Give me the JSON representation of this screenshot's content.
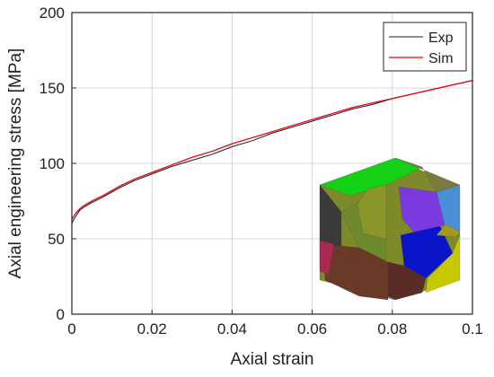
{
  "colors": {
    "exp": "#1a1a1a",
    "sim": "#e8000b",
    "grid": "#d9d9d9",
    "axis": "#262626"
  },
  "chart_data": {
    "type": "line",
    "title": "",
    "xlabel": "Axial strain",
    "ylabel": "Axial engineering stress [MPa]",
    "xlim": [
      0,
      0.1
    ],
    "ylim": [
      0,
      200
    ],
    "xticks": [
      0,
      0.02,
      0.04,
      0.06,
      0.08,
      0.1
    ],
    "xtick_labels": [
      "0",
      "0.02",
      "0.04",
      "0.06",
      "0.08",
      "0.1"
    ],
    "yticks": [
      0,
      50,
      100,
      150,
      200
    ],
    "ytick_labels": [
      "0",
      "50",
      "100",
      "150",
      "200"
    ],
    "grid": true,
    "legend_position": "top-right",
    "series": [
      {
        "name": "Exp",
        "color": "#1a1a1a",
        "x": [
          0,
          0.0005,
          0.001,
          0.002,
          0.003,
          0.005,
          0.008,
          0.012,
          0.016,
          0.02,
          0.025,
          0.03,
          0.035,
          0.04,
          0.045,
          0.05,
          0.055,
          0.06,
          0.065,
          0.07,
          0.075,
          0.08,
          0.085,
          0.09,
          0.095,
          0.1
        ],
        "y": [
          60,
          63,
          65,
          69,
          71,
          74,
          78,
          84,
          89,
          93,
          98,
          102,
          106,
          111,
          115,
          120,
          124,
          128,
          132,
          136,
          139,
          143,
          146,
          149,
          152,
          155
        ]
      },
      {
        "name": "Sim",
        "color": "#e8000b",
        "x": [
          0,
          0.0005,
          0.001,
          0.002,
          0.003,
          0.005,
          0.008,
          0.012,
          0.016,
          0.02,
          0.025,
          0.03,
          0.035,
          0.04,
          0.045,
          0.05,
          0.055,
          0.06,
          0.065,
          0.07,
          0.075,
          0.08,
          0.085,
          0.09,
          0.095,
          0.1
        ],
        "y": [
          63,
          65,
          67,
          70,
          72,
          75,
          79,
          85,
          90,
          94,
          99,
          104,
          108,
          113,
          117,
          121,
          125,
          129,
          133,
          137,
          140,
          143,
          146,
          149,
          152,
          155
        ]
      }
    ]
  }
}
